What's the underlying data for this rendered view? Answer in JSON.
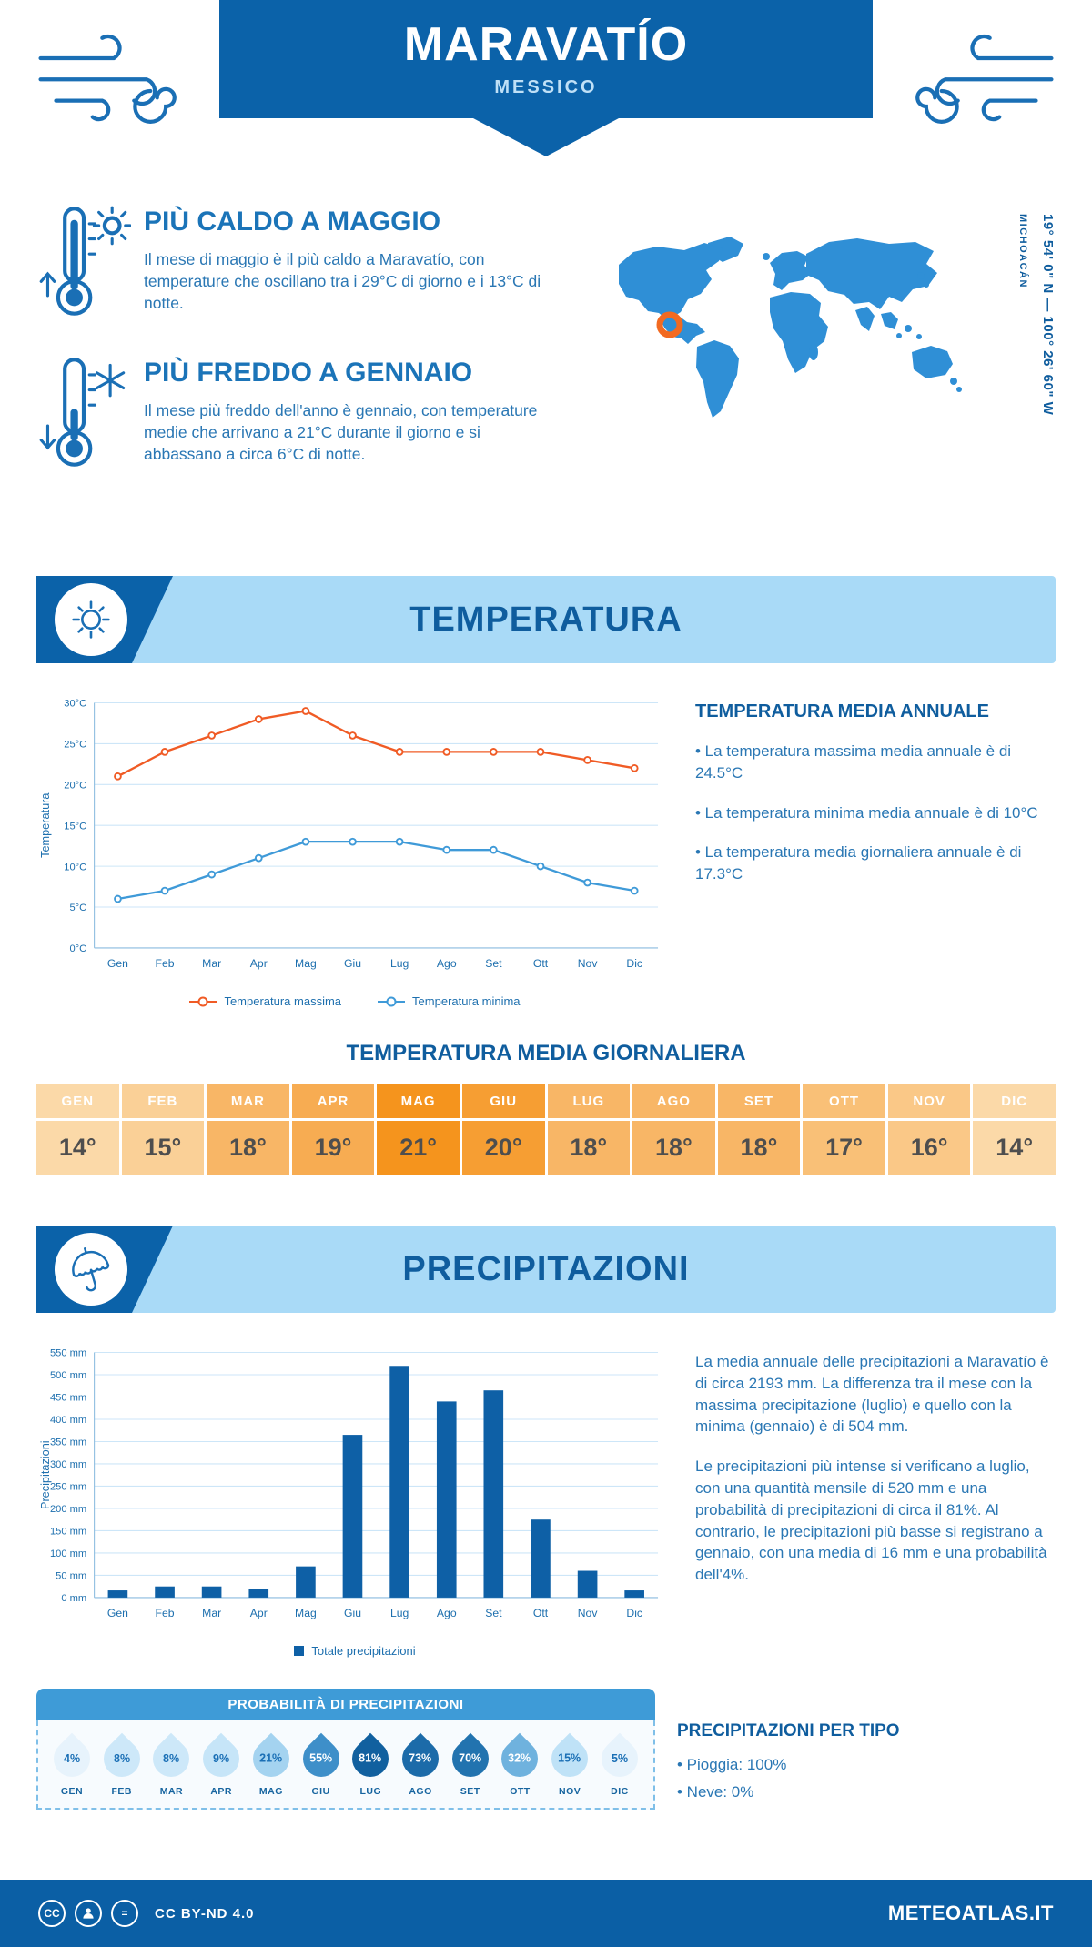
{
  "header": {
    "title": "MARAVATÍO",
    "subtitle": "MESSICO"
  },
  "location": {
    "coordinates": "19° 54' 0\" N — 100° 26' 60\" W",
    "region": "MICHOACÁN"
  },
  "highlights": {
    "hot": {
      "title": "PIÙ CALDO A MAGGIO",
      "text": "Il mese di maggio è il più caldo a Maravatío, con temperature che oscillano tra i 29°C di giorno e i 13°C di notte."
    },
    "cold": {
      "title": "PIÙ FREDDO A GENNAIO",
      "text": "Il mese più freddo dell'anno è gennaio, con temperature medie che arrivano a 21°C durante il giorno e si abbassano a circa 6°C di notte."
    }
  },
  "temperature_section": {
    "banner": "TEMPERATURA",
    "annual_title": "TEMPERATURA MEDIA ANNUALE",
    "bullets": [
      "• La temperatura massima media annuale è di 24.5°C",
      "• La temperatura minima media annuale è di 10°C",
      "• La temperatura media giornaliera annuale è di 17.3°C"
    ],
    "daily_title": "TEMPERATURA MEDIA GIORNALIERA",
    "daily_table": {
      "months": [
        "GEN",
        "FEB",
        "MAR",
        "APR",
        "MAG",
        "GIU",
        "LUG",
        "AGO",
        "SET",
        "OTT",
        "NOV",
        "DIC"
      ],
      "values": [
        "14°",
        "15°",
        "18°",
        "19°",
        "21°",
        "20°",
        "18°",
        "18°",
        "18°",
        "17°",
        "16°",
        "14°"
      ],
      "colors": [
        "#FBD9A8",
        "#FAD097",
        "#F8B666",
        "#F7AC52",
        "#F5941D",
        "#F69E33",
        "#F8B666",
        "#F8B666",
        "#F8B666",
        "#F9C077",
        "#FAC887",
        "#FBD9A8"
      ]
    }
  },
  "chart_data": [
    {
      "type": "line",
      "categories": [
        "Gen",
        "Feb",
        "Mar",
        "Apr",
        "Mag",
        "Giu",
        "Lug",
        "Ago",
        "Set",
        "Ott",
        "Nov",
        "Dic"
      ],
      "series": [
        {
          "name": "Temperatura massima",
          "color": "#F05B25",
          "values": [
            21,
            24,
            26,
            28,
            29,
            26,
            24,
            24,
            24,
            24,
            23,
            22
          ]
        },
        {
          "name": "Temperatura minima",
          "color": "#3F9AD8",
          "values": [
            6,
            7,
            9,
            11,
            13,
            13,
            13,
            12,
            12,
            10,
            8,
            7
          ]
        }
      ],
      "ylabel": "Temperatura",
      "ylim": [
        0,
        30
      ],
      "ytick_step": 5,
      "ytick_suffix": "°C",
      "grid": true,
      "legend_position": "bottom"
    },
    {
      "type": "bar",
      "categories": [
        "Gen",
        "Feb",
        "Mar",
        "Apr",
        "Mag",
        "Giu",
        "Lug",
        "Ago",
        "Set",
        "Ott",
        "Nov",
        "Dic"
      ],
      "series": [
        {
          "name": "Totale precipitazioni",
          "color": "#0E60A6",
          "values": [
            16,
            25,
            25,
            20,
            70,
            365,
            520,
            440,
            465,
            175,
            60,
            16
          ]
        }
      ],
      "ylabel": "Precipitazioni",
      "ylim": [
        0,
        550
      ],
      "ytick_step": 50,
      "ytick_suffix": " mm",
      "grid": true,
      "legend_position": "bottom"
    }
  ],
  "precipitation_section": {
    "banner": "PRECIPITAZIONI",
    "paragraphs": [
      "La media annuale delle precipitazioni a Maravatío è di circa 2193 mm. La differenza tra il mese con la massima precipitazione (luglio) e quello con la minima (gennaio) è di 504 mm.",
      "Le precipitazioni più intense si verificano a luglio, con una quantità mensile di 520 mm e una probabilità di precipitazioni di circa il 81%. Al contrario, le precipitazioni più basse si registrano a gennaio, con una media di 16 mm e una probabilità dell'4%."
    ],
    "probability": {
      "title": "PROBABILITÀ DI PRECIPITAZIONI",
      "months": [
        "GEN",
        "FEB",
        "MAR",
        "APR",
        "MAG",
        "GIU",
        "LUG",
        "AGO",
        "SET",
        "OTT",
        "NOV",
        "DIC"
      ],
      "values": [
        "4%",
        "8%",
        "8%",
        "9%",
        "21%",
        "55%",
        "81%",
        "73%",
        "70%",
        "32%",
        "15%",
        "5%"
      ],
      "fills": [
        "#E7F3FC",
        "#CDE8F9",
        "#CDE8F9",
        "#C6E5F8",
        "#A4D3F0",
        "#3E8FC9",
        "#11609F",
        "#1C6BA9",
        "#2273AF",
        "#6FB2DE",
        "#BFE2F7",
        "#E7F3FC"
      ],
      "text_colors": [
        "#1A6FB5",
        "#1A6FB5",
        "#1A6FB5",
        "#1A6FB5",
        "#1A6FB5",
        "#FFFFFF",
        "#FFFFFF",
        "#FFFFFF",
        "#FFFFFF",
        "#FFFFFF",
        "#1A6FB5",
        "#1A6FB5"
      ]
    },
    "types": {
      "title": "PRECIPITAZIONI PER TIPO",
      "bullets": [
        "• Pioggia: 100%",
        "• Neve: 0%"
      ]
    }
  },
  "footer": {
    "license": "CC BY-ND 4.0",
    "site": "METEOATLAS.IT"
  }
}
